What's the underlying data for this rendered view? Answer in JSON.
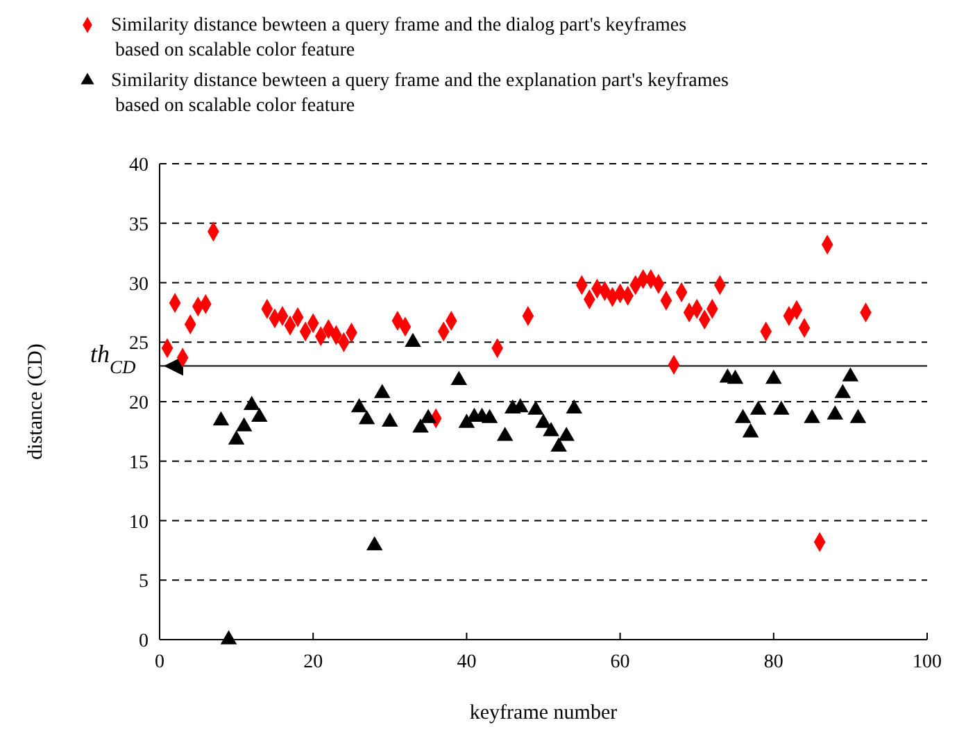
{
  "chart_data": {
    "type": "scatter",
    "xlabel": "keyframe number",
    "ylabel": "distance (CD)",
    "xlim": [
      0,
      100
    ],
    "xticks": [
      0,
      20,
      40,
      60,
      80,
      100
    ],
    "ylim": [
      0,
      40
    ],
    "yticks": [
      0,
      5,
      10,
      15,
      20,
      25,
      30,
      35,
      40
    ],
    "grid": "y",
    "legend": "top",
    "ref_lines": [
      {
        "axis": "y",
        "value": 23,
        "label": "th$_{CD}$",
        "color": "#000000",
        "line_style": "solid"
      }
    ],
    "series": [
      {
        "name": "Similarity distance bewteen a query frame and the dialog part's keyframes based on scalable color feature",
        "color": "#ff0000",
        "marker": "diamond",
        "x": [
          1,
          2,
          3,
          4,
          5,
          6,
          7,
          14,
          15,
          16,
          17,
          18,
          19,
          20,
          21,
          22,
          23,
          24,
          25,
          31,
          32,
          36,
          37,
          38,
          44,
          48,
          55,
          56,
          57,
          58,
          59,
          60,
          61,
          62,
          63,
          64,
          65,
          66,
          67,
          68,
          69,
          70,
          71,
          72,
          73,
          79,
          82,
          83,
          84,
          86,
          87,
          92
        ],
        "values": [
          24.5,
          28.3,
          23.7,
          26.5,
          28,
          28.2,
          34.3,
          27.8,
          27,
          27.2,
          26.4,
          27.1,
          25.9,
          26.6,
          25.5,
          26.1,
          25.6,
          25,
          25.8,
          26.8,
          26.3,
          18.6,
          25.9,
          26.8,
          24.5,
          27.2,
          29.8,
          28.6,
          29.5,
          29.3,
          28.8,
          29.1,
          28.9,
          29.8,
          30.3,
          30.3,
          29.9,
          28.5,
          23.1,
          29.2,
          27.5,
          27.8,
          26.9,
          27.8,
          29.8,
          25.9,
          27.2,
          27.7,
          26.2,
          8.2,
          33.2,
          27.5
        ]
      },
      {
        "name": "Similarity distance bewteen a query frame and the explanation part's keyframes based on scalable color feature",
        "color": "#000000",
        "marker": "triangle",
        "x": [
          8,
          9,
          10,
          11,
          12,
          13,
          26,
          27,
          28,
          29,
          30,
          33,
          34,
          35,
          39,
          40,
          41,
          42,
          43,
          45,
          46,
          47,
          49,
          50,
          51,
          52,
          53,
          54,
          74,
          75,
          76,
          77,
          78,
          80,
          81,
          85,
          88,
          89,
          90,
          91
        ],
        "values": [
          18.4,
          0,
          16.8,
          17.9,
          19.7,
          18.7,
          19.5,
          18.5,
          7.9,
          20.7,
          18.3,
          25,
          17.8,
          18.6,
          21.8,
          18.2,
          18.7,
          18.7,
          18.6,
          17.1,
          19.4,
          19.5,
          19.3,
          18.2,
          17.5,
          16.2,
          17.1,
          19.4,
          22,
          21.9,
          18.6,
          17.4,
          19.3,
          21.9,
          19.3,
          18.6,
          18.9,
          20.7,
          22.1,
          18.6
        ]
      }
    ]
  }
}
